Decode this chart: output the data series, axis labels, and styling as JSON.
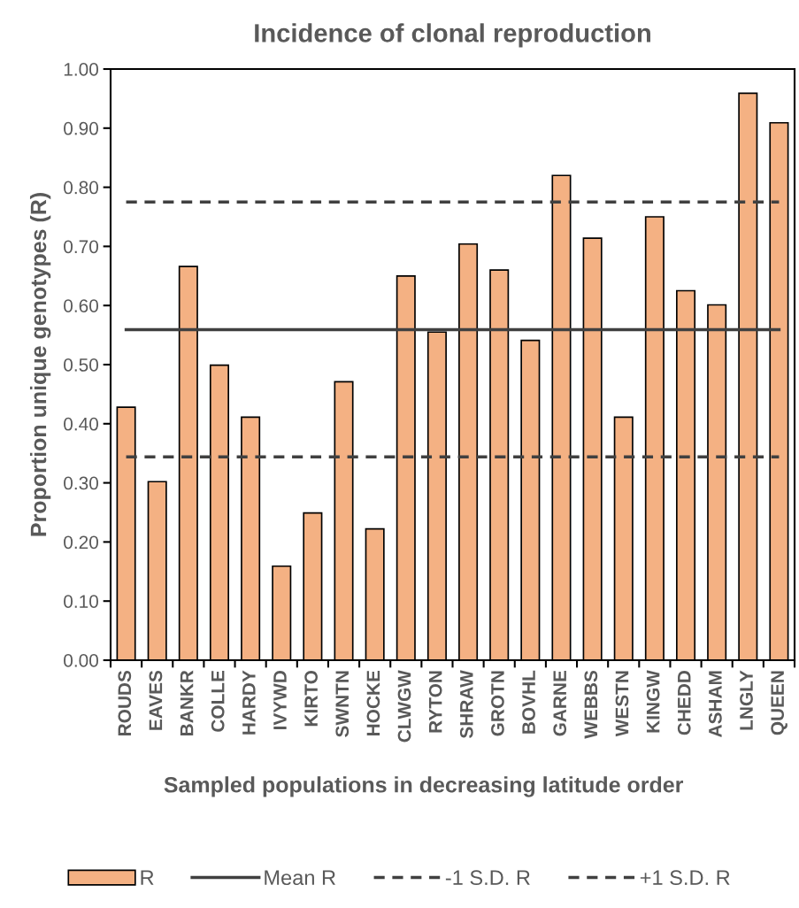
{
  "chart_data": {
    "type": "bar",
    "title": "Incidence of clonal reproduction",
    "xlabel": "Sampled populations in decreasing latitude order",
    "ylabel": "Proportion unique genotypes (R)",
    "categories": [
      "ROUDS",
      "EAVES",
      "BANKR",
      "COLLE",
      "HARDY",
      "IVYWD",
      "KIRTO",
      "SWNTN",
      "HOCKE",
      "CLWGW",
      "RYTON",
      "SHRAW",
      "GROTN",
      "BOVHL",
      "GARNE",
      "WEBBS",
      "WESTN",
      "KINGW",
      "CHEDD",
      "ASHAM",
      "LNGLY",
      "QUEEN"
    ],
    "series": [
      {
        "name": "R",
        "color": "#f4b183",
        "values": [
          0.428,
          0.302,
          0.666,
          0.499,
          0.411,
          0.159,
          0.249,
          0.471,
          0.222,
          0.65,
          0.555,
          0.704,
          0.66,
          0.541,
          0.82,
          0.714,
          0.411,
          0.75,
          0.625,
          0.601,
          0.959,
          0.909
        ]
      }
    ],
    "ylim": [
      0,
      1
    ],
    "yticks": [
      {
        "value": 0,
        "label": "0.00"
      },
      {
        "value": 0.1,
        "label": "0.10"
      },
      {
        "value": 0.2,
        "label": "0.20"
      },
      {
        "value": 0.3,
        "label": "0.30"
      },
      {
        "value": 0.4,
        "label": "0.40"
      },
      {
        "value": 0.5,
        "label": "0.50"
      },
      {
        "value": 0.6,
        "label": "0.60"
      },
      {
        "value": 0.7,
        "label": "0.70"
      },
      {
        "value": 0.8,
        "label": "0.80"
      },
      {
        "value": 0.9,
        "label": "0.90"
      },
      {
        "value": 1,
        "label": "1.00"
      }
    ],
    "ref_lines": [
      {
        "axis": "y",
        "value": 0.559,
        "label": "Mean R",
        "color": "#404040",
        "line_style": "solid"
      },
      {
        "axis": "y",
        "value": 0.344,
        "label": "-1 S.D. R",
        "color": "#404040",
        "line_style": "dashed"
      },
      {
        "axis": "y",
        "value": 0.775,
        "label": "+1 S.D. R",
        "color": "#404040",
        "line_style": "dashed"
      }
    ],
    "legend": "bottom",
    "grid": false
  }
}
